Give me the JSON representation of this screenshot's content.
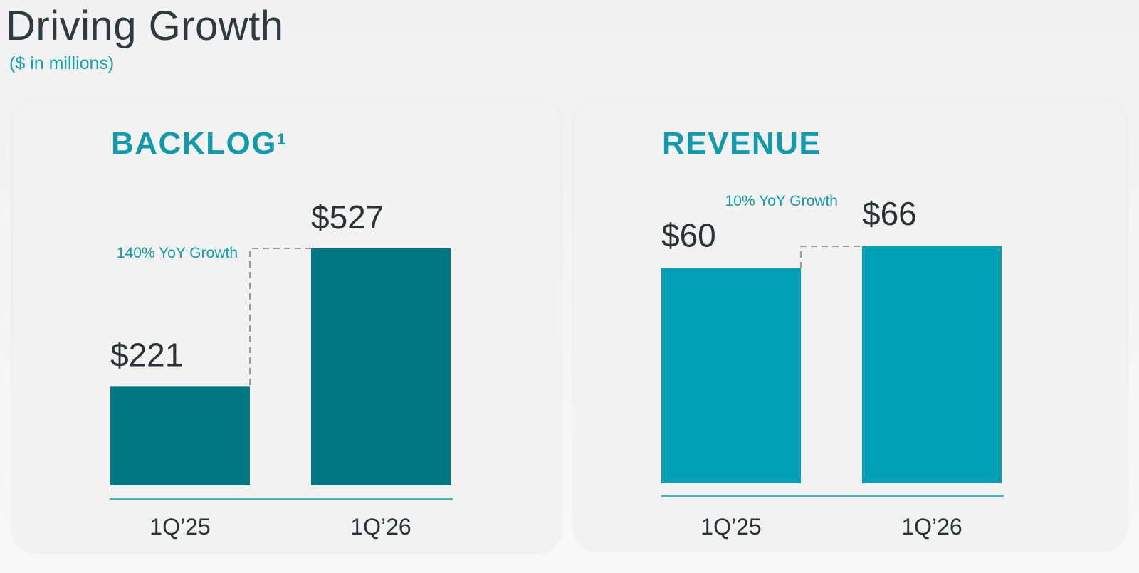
{
  "header": {
    "title": "Driving Growth",
    "subtitle": "($ in millions)"
  },
  "panels": [
    {
      "heading": "BACKLOG",
      "footnote_marker": "1"
    },
    {
      "heading": "REVENUE",
      "footnote_marker": ""
    }
  ],
  "chart_data": [
    {
      "type": "bar",
      "title": "BACKLOG",
      "categories": [
        "1Q’25",
        "1Q’26"
      ],
      "values": [
        221,
        527
      ],
      "value_labels": [
        "$221",
        "$527"
      ],
      "annotation": "140% YoY Growth",
      "bar_color": "#007783",
      "accent_color": "#1499ab",
      "grid": false,
      "legend": "none",
      "ylim": [
        0,
        527
      ]
    },
    {
      "type": "bar",
      "title": "REVENUE",
      "categories": [
        "1Q’25",
        "1Q’26"
      ],
      "values": [
        60,
        66
      ],
      "value_labels": [
        "$60",
        "$66"
      ],
      "annotation": "10% YoY Growth",
      "bar_color": "#009fb4",
      "accent_color": "#1499ab",
      "grid": false,
      "legend": "none",
      "ylim": [
        0,
        66
      ]
    }
  ]
}
